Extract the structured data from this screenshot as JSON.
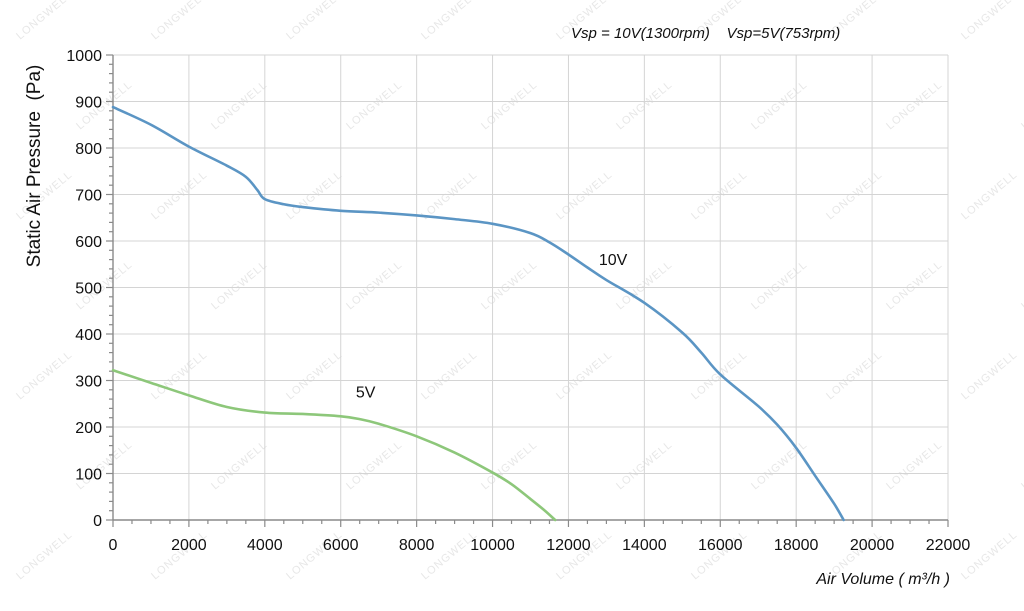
{
  "chart_data": {
    "type": "line",
    "header": "Vsp = 10V(1300rpm)    Vsp=5V(753rpm)",
    "xlabel": "Air Volume ( m³/h )",
    "ylabel": "Static Air Pressure  (Pa)",
    "xlim": [
      0,
      22000
    ],
    "ylim": [
      0,
      1000
    ],
    "x_ticks": [
      0,
      2000,
      4000,
      6000,
      8000,
      10000,
      12000,
      14000,
      16000,
      18000,
      20000,
      22000
    ],
    "y_ticks": [
      0,
      100,
      200,
      300,
      400,
      500,
      600,
      700,
      800,
      900,
      1000
    ],
    "grid": true,
    "watermark": "LONGWELL",
    "series": [
      {
        "name": "10V",
        "color": "#5b95c4",
        "points": [
          [
            0,
            888
          ],
          [
            1000,
            850
          ],
          [
            2000,
            803
          ],
          [
            3000,
            762
          ],
          [
            3500,
            738
          ],
          [
            3800,
            710
          ],
          [
            4000,
            690
          ],
          [
            4500,
            679
          ],
          [
            5000,
            673
          ],
          [
            6000,
            665
          ],
          [
            7000,
            661
          ],
          [
            8000,
            655
          ],
          [
            9000,
            647
          ],
          [
            10000,
            637
          ],
          [
            11000,
            617
          ],
          [
            11500,
            597
          ],
          [
            12000,
            571
          ],
          [
            12500,
            543
          ],
          [
            13000,
            516
          ],
          [
            14000,
            467
          ],
          [
            15000,
            403
          ],
          [
            15500,
            360
          ],
          [
            16000,
            313
          ],
          [
            17000,
            245
          ],
          [
            17500,
            205
          ],
          [
            18000,
            155
          ],
          [
            18500,
            95
          ],
          [
            19000,
            35
          ],
          [
            19250,
            0
          ]
        ]
      },
      {
        "name": "5V",
        "color": "#8dc77a",
        "points": [
          [
            0,
            322
          ],
          [
            1000,
            295
          ],
          [
            2000,
            268
          ],
          [
            3000,
            243
          ],
          [
            4000,
            231
          ],
          [
            5000,
            228
          ],
          [
            6000,
            223
          ],
          [
            6500,
            217
          ],
          [
            7000,
            207
          ],
          [
            8000,
            180
          ],
          [
            9000,
            145
          ],
          [
            10000,
            102
          ],
          [
            10500,
            77
          ],
          [
            11000,
            45
          ],
          [
            11350,
            22
          ],
          [
            11650,
            0
          ]
        ]
      }
    ]
  }
}
